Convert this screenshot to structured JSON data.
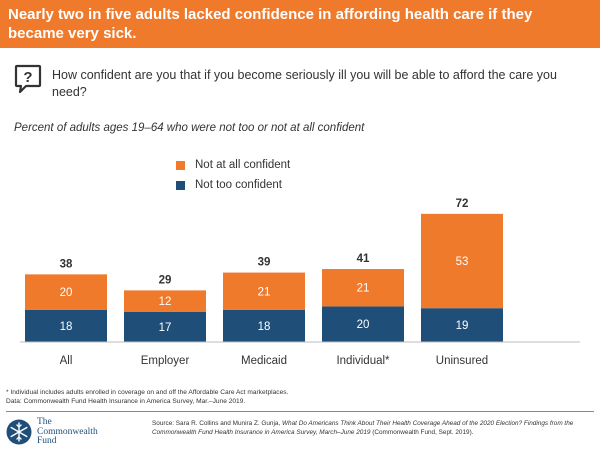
{
  "header": {
    "title": "Nearly two in five adults lacked confidence in affording health care if they became very sick."
  },
  "question": {
    "icon": "question-bubble-icon",
    "text": "How confident are you that if you become seriously ill you will be able to afford the care you need?"
  },
  "subtitle": "Percent of adults ages 19–64 who were not too or not at all confident",
  "colors": {
    "orange": "#ef7a2c",
    "navy": "#1f4e79",
    "header": "#ef7a2c"
  },
  "chart_data": {
    "type": "bar",
    "stacked": true,
    "categories": [
      "All",
      "Employer",
      "Medicaid",
      "Individual*",
      "Uninsured"
    ],
    "series": [
      {
        "name": "Not too confident",
        "color": "#1f4e79",
        "values": [
          18,
          17,
          18,
          20,
          19
        ]
      },
      {
        "name": "Not at all confident",
        "color": "#ef7a2c",
        "values": [
          20,
          12,
          21,
          21,
          53
        ]
      }
    ],
    "totals": [
      38,
      29,
      39,
      41,
      72
    ],
    "legend": [
      {
        "label": "Not at all confident",
        "color": "#ef7a2c"
      },
      {
        "label": "Not too confident",
        "color": "#1f4e79"
      }
    ],
    "ylim": [
      0,
      80
    ],
    "grid": false,
    "legend_position": "top-left"
  },
  "footnote": {
    "line1": "* Individual includes adults enrolled in coverage on and off the Affordable Care Act marketplaces.",
    "line2": "Data: Commonwealth Fund Health Insurance in America Survey, Mar.–June 2019."
  },
  "logo": {
    "line1": "The",
    "line2": "Commonwealth",
    "line3": "Fund"
  },
  "source": {
    "prefix": "Source: Sara R. Collins and Munira Z. Gunja, ",
    "title": "What Do Americans Think About Their Health Coverage Ahead of the 2020 Election? Findings from the Commonwealth Fund Health Insurance in America Survey, March–June 2019",
    "suffix": " (Commonwealth Fund, Sept. 2019)."
  }
}
